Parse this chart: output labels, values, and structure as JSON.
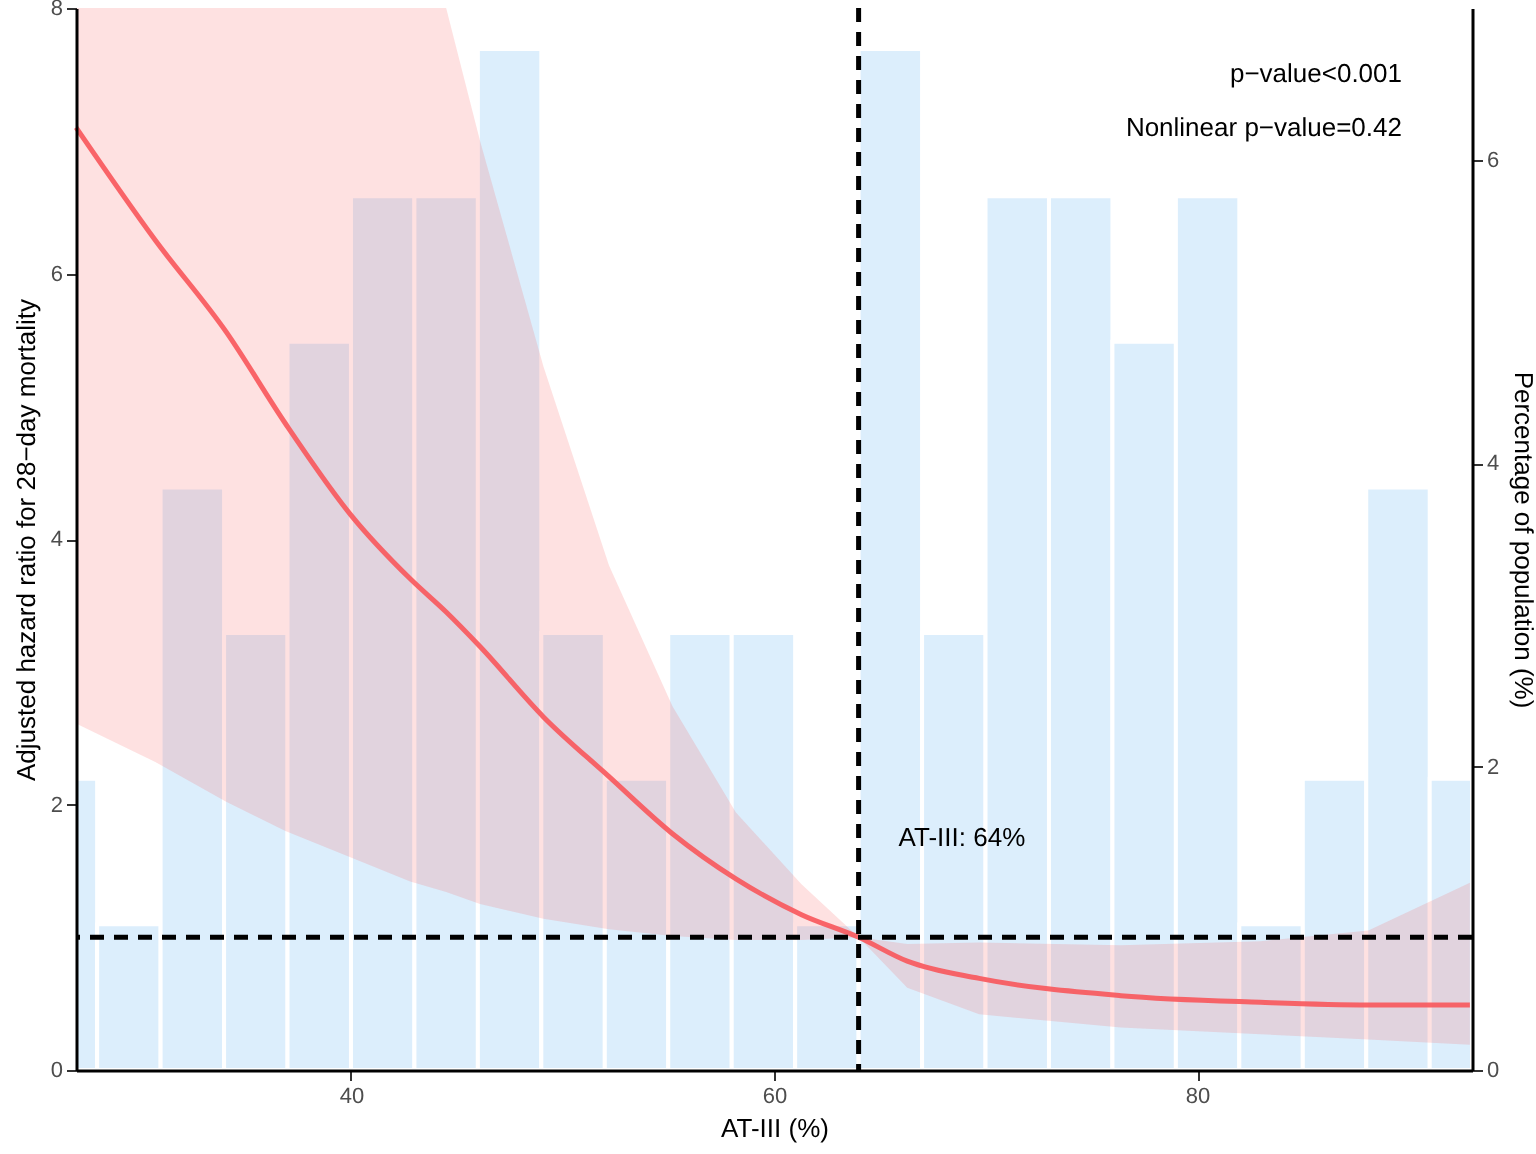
{
  "chart_data": {
    "type": "line",
    "xlabel": "AT-III (%)",
    "ylabel": "Adjusted hazard ratio for 28−day mortality",
    "y2label": "Percentage of population (%)",
    "xlim": [
      27,
      93
    ],
    "xticks": [
      40,
      60,
      80
    ],
    "ylim": [
      0,
      8
    ],
    "yticks": [
      0,
      2,
      4,
      6,
      8
    ],
    "y2lim": [
      0,
      7
    ],
    "y2ticks": [
      0,
      2,
      4,
      6
    ],
    "series": [
      {
        "type": "histogram",
        "axis": "y2",
        "color": "#dceefc",
        "bins": [
          27,
          28,
          31,
          34,
          37,
          40,
          43,
          46,
          49,
          52,
          55,
          58,
          61,
          64,
          67,
          70,
          73,
          76,
          79,
          82,
          85,
          88,
          91,
          93
        ],
        "values": [
          1.92,
          0.96,
          3.84,
          2.88,
          4.8,
          5.76,
          5.76,
          6.73,
          2.88,
          1.92,
          2.88,
          2.88,
          0.96,
          6.73,
          2.88,
          5.76,
          5.76,
          4.8,
          5.76,
          0.96,
          1.92,
          3.84,
          1.92
        ]
      },
      {
        "color": "#f8565b",
        "line_style": "solid",
        "x": [
          27,
          30.75,
          34.1,
          36.9,
          40,
          42.8,
          44.5,
          46.1,
          49.1,
          52.2,
          55.2,
          58.2,
          61.3,
          64,
          66.3,
          69.7,
          76.4,
          83,
          88.1,
          92.9
        ],
        "values": [
          7.1,
          6.25,
          5.56,
          4.87,
          4.18,
          3.7,
          3.45,
          3.19,
          2.66,
          2.21,
          1.78,
          1.44,
          1.17,
          1.0,
          0.82,
          0.69,
          0.56,
          0.51,
          0.49,
          0.49
        ],
        "upper": [
          8,
          8,
          8,
          8,
          8,
          8,
          8,
          7.0,
          5.3,
          3.8,
          2.74,
          1.94,
          1.4,
          1.0,
          0.95,
          0.96,
          0.94,
          0.97,
          1.05,
          1.41
        ],
        "lower": [
          2.61,
          2.32,
          2.02,
          1.8,
          1.6,
          1.42,
          1.34,
          1.25,
          1.14,
          1.06,
          1.01,
          0.98,
          0.98,
          1.0,
          0.62,
          0.42,
          0.32,
          0.27,
          0.23,
          0.19
        ]
      }
    ],
    "ref_lines": [
      {
        "axis": "y",
        "value": 1,
        "line_style": "dashed",
        "color": "#000000"
      },
      {
        "axis": "x",
        "value": 64,
        "label": "AT-III: 64%",
        "line_style": "dashed",
        "color": "#000000"
      }
    ],
    "annotations": [
      "p−value<0.001",
      "Nonlinear p−value=0.42"
    ]
  }
}
